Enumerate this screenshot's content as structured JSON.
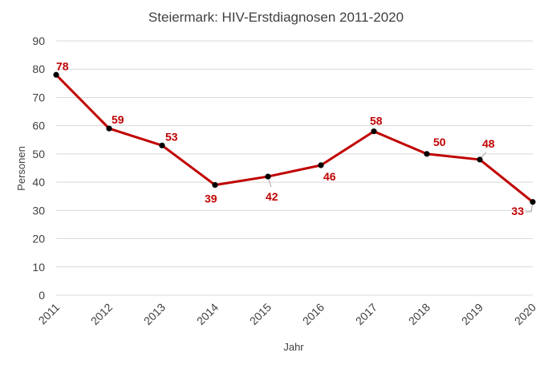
{
  "chart_data": {
    "type": "line",
    "title": "Steiermark: HIV-Erstdiagnosen 2011-2020",
    "xlabel": "Jahr",
    "ylabel": "Personen",
    "categories": [
      "2011",
      "2012",
      "2013",
      "2014",
      "2015",
      "2016",
      "2017",
      "2018",
      "2019",
      "2020"
    ],
    "series": [
      {
        "values": [
          78,
          59,
          53,
          39,
          42,
          46,
          58,
          50,
          48,
          33
        ]
      }
    ],
    "ylim": [
      0,
      90
    ],
    "yticks": [
      0,
      10,
      20,
      30,
      40,
      50,
      60,
      70,
      80,
      90
    ],
    "grid": true,
    "legend": "none",
    "colors": {
      "line": "#c00000",
      "marker": "#000000",
      "label": "#c00000",
      "grid": "#d9d9d9",
      "text": "#404040"
    }
  }
}
